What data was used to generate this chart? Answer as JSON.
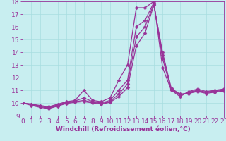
{
  "xlabel": "Windchill (Refroidissement éolien,°C)",
  "xlim": [
    0,
    23
  ],
  "ylim": [
    9,
    18
  ],
  "xticks": [
    0,
    1,
    2,
    3,
    4,
    5,
    6,
    7,
    8,
    9,
    10,
    11,
    12,
    13,
    14,
    15,
    16,
    17,
    18,
    19,
    20,
    21,
    22,
    23
  ],
  "yticks": [
    9,
    10,
    11,
    12,
    13,
    14,
    15,
    16,
    17,
    18
  ],
  "bg_color": "#c8eef0",
  "line_color": "#993399",
  "grid_color": "#a8dde0",
  "series": [
    [
      10.0,
      9.9,
      9.8,
      9.7,
      9.9,
      10.1,
      10.2,
      11.0,
      10.2,
      10.1,
      10.4,
      11.8,
      13.0,
      17.5,
      17.5,
      18.0,
      12.8,
      11.0,
      10.5,
      10.9,
      11.1,
      10.9,
      11.0,
      11.1
    ],
    [
      10.0,
      9.9,
      9.75,
      9.65,
      9.85,
      10.05,
      10.15,
      10.4,
      10.1,
      10.0,
      10.2,
      11.0,
      11.8,
      16.0,
      16.5,
      17.9,
      13.5,
      11.05,
      10.6,
      10.85,
      11.0,
      10.85,
      10.95,
      11.05
    ],
    [
      10.0,
      9.85,
      9.7,
      9.6,
      9.8,
      10.0,
      10.1,
      10.2,
      10.05,
      9.95,
      10.1,
      10.7,
      11.5,
      15.2,
      16.0,
      17.8,
      13.8,
      11.1,
      10.65,
      10.8,
      10.95,
      10.8,
      10.9,
      11.0
    ],
    [
      10.0,
      9.8,
      9.65,
      9.55,
      9.75,
      9.95,
      10.05,
      10.1,
      10.0,
      9.9,
      10.05,
      10.5,
      11.2,
      14.5,
      15.5,
      17.7,
      14.0,
      11.15,
      10.7,
      10.75,
      10.9,
      10.75,
      10.85,
      10.95
    ]
  ],
  "marker": "D",
  "marker_size": 2.5,
  "linewidth": 0.9,
  "font_size_label": 6.5,
  "font_size_tick": 6.5
}
